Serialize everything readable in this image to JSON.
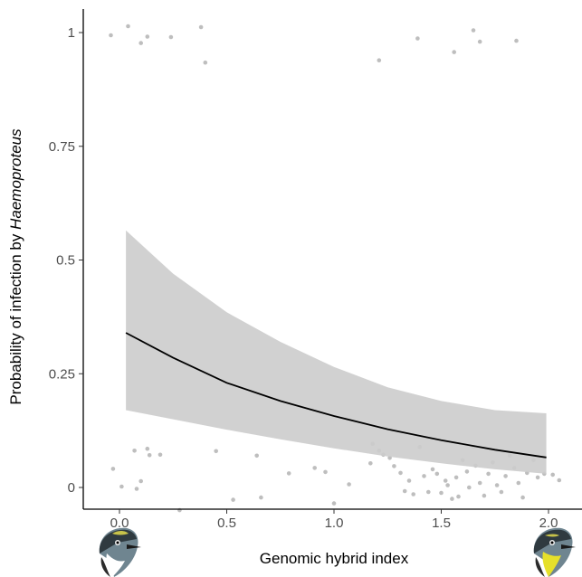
{
  "chart_data": {
    "type": "scatter",
    "xlabel": "Genomic hybrid index",
    "ylabel_prefix": "Probability of infection by ",
    "ylabel_italic": "Haemoproteus",
    "xlim": [
      -0.1,
      2.1
    ],
    "ylim": [
      -0.08,
      1.05
    ],
    "x_ticks": [
      0.0,
      0.5,
      1.0,
      1.5,
      2.0
    ],
    "x_tick_labels": [
      "0.0",
      "0.5",
      "1.0",
      "1.5",
      "2.0"
    ],
    "y_ticks": [
      0,
      0.25,
      0.5,
      0.75,
      1
    ],
    "y_tick_labels": [
      "0",
      "0.25",
      "0.5",
      "0.75",
      "1"
    ],
    "grid": false,
    "colors": {
      "points": "#b3b3b3",
      "ribbon": "#cccccc",
      "line": "#000000",
      "axis": "#000000"
    },
    "fit": {
      "x": [
        0.03,
        0.25,
        0.5,
        0.75,
        1.0,
        1.25,
        1.5,
        1.75,
        1.99
      ],
      "y": [
        0.34,
        0.285,
        0.23,
        0.19,
        0.157,
        0.128,
        0.104,
        0.083,
        0.066
      ],
      "lower": [
        0.17,
        0.15,
        0.127,
        0.106,
        0.086,
        0.068,
        0.053,
        0.04,
        0.03
      ],
      "upper": [
        0.565,
        0.47,
        0.385,
        0.32,
        0.265,
        0.22,
        0.19,
        0.17,
        0.163
      ]
    },
    "points": {
      "x": [
        -0.04,
        0.04,
        0.1,
        0.13,
        0.24,
        0.38,
        0.4,
        1.21,
        1.39,
        1.56,
        1.65,
        1.68,
        1.85,
        -0.03,
        0.01,
        0.07,
        0.08,
        0.1,
        0.13,
        0.14,
        0.19,
        0.45,
        0.53,
        0.64,
        0.66,
        0.79,
        0.91,
        0.96,
        1.0,
        1.07,
        1.17,
        1.21,
        1.23,
        1.26,
        1.28,
        1.31,
        1.33,
        1.35,
        1.37,
        1.4,
        1.42,
        1.44,
        1.46,
        1.48,
        1.5,
        1.52,
        1.53,
        1.55,
        1.57,
        1.58,
        1.6,
        1.62,
        1.63,
        1.65,
        1.66,
        1.68,
        1.7,
        1.72,
        1.74,
        1.76,
        1.78,
        1.8,
        1.82,
        1.84,
        1.86,
        1.88,
        1.9,
        1.93,
        1.95,
        1.98,
        2.02,
        2.05,
        0.28,
        1.18
      ],
      "y": [
        0.994,
        1.014,
        0.977,
        0.991,
        0.99,
        1.012,
        0.934,
        0.939,
        0.987,
        0.957,
        1.005,
        0.98,
        0.982,
        0.041,
        0.002,
        0.081,
        -0.003,
        0.014,
        0.085,
        0.071,
        0.072,
        0.08,
        -0.027,
        0.07,
        -0.022,
        0.031,
        0.043,
        0.034,
        -0.035,
        0.007,
        0.053,
        0.081,
        0.072,
        0.065,
        0.047,
        0.032,
        -0.008,
        0.015,
        -0.015,
        0.089,
        0.025,
        -0.01,
        0.04,
        0.03,
        -0.012,
        0.015,
        0.005,
        -0.025,
        0.022,
        -0.02,
        0.06,
        0.035,
        0.0,
        0.09,
        0.048,
        0.01,
        -0.018,
        0.03,
        0.055,
        0.005,
        -0.01,
        0.025,
        0.07,
        0.043,
        0.01,
        -0.022,
        0.032,
        0.06,
        0.022,
        0.03,
        0.028,
        0.016,
        -0.05,
        0.096
      ]
    }
  }
}
